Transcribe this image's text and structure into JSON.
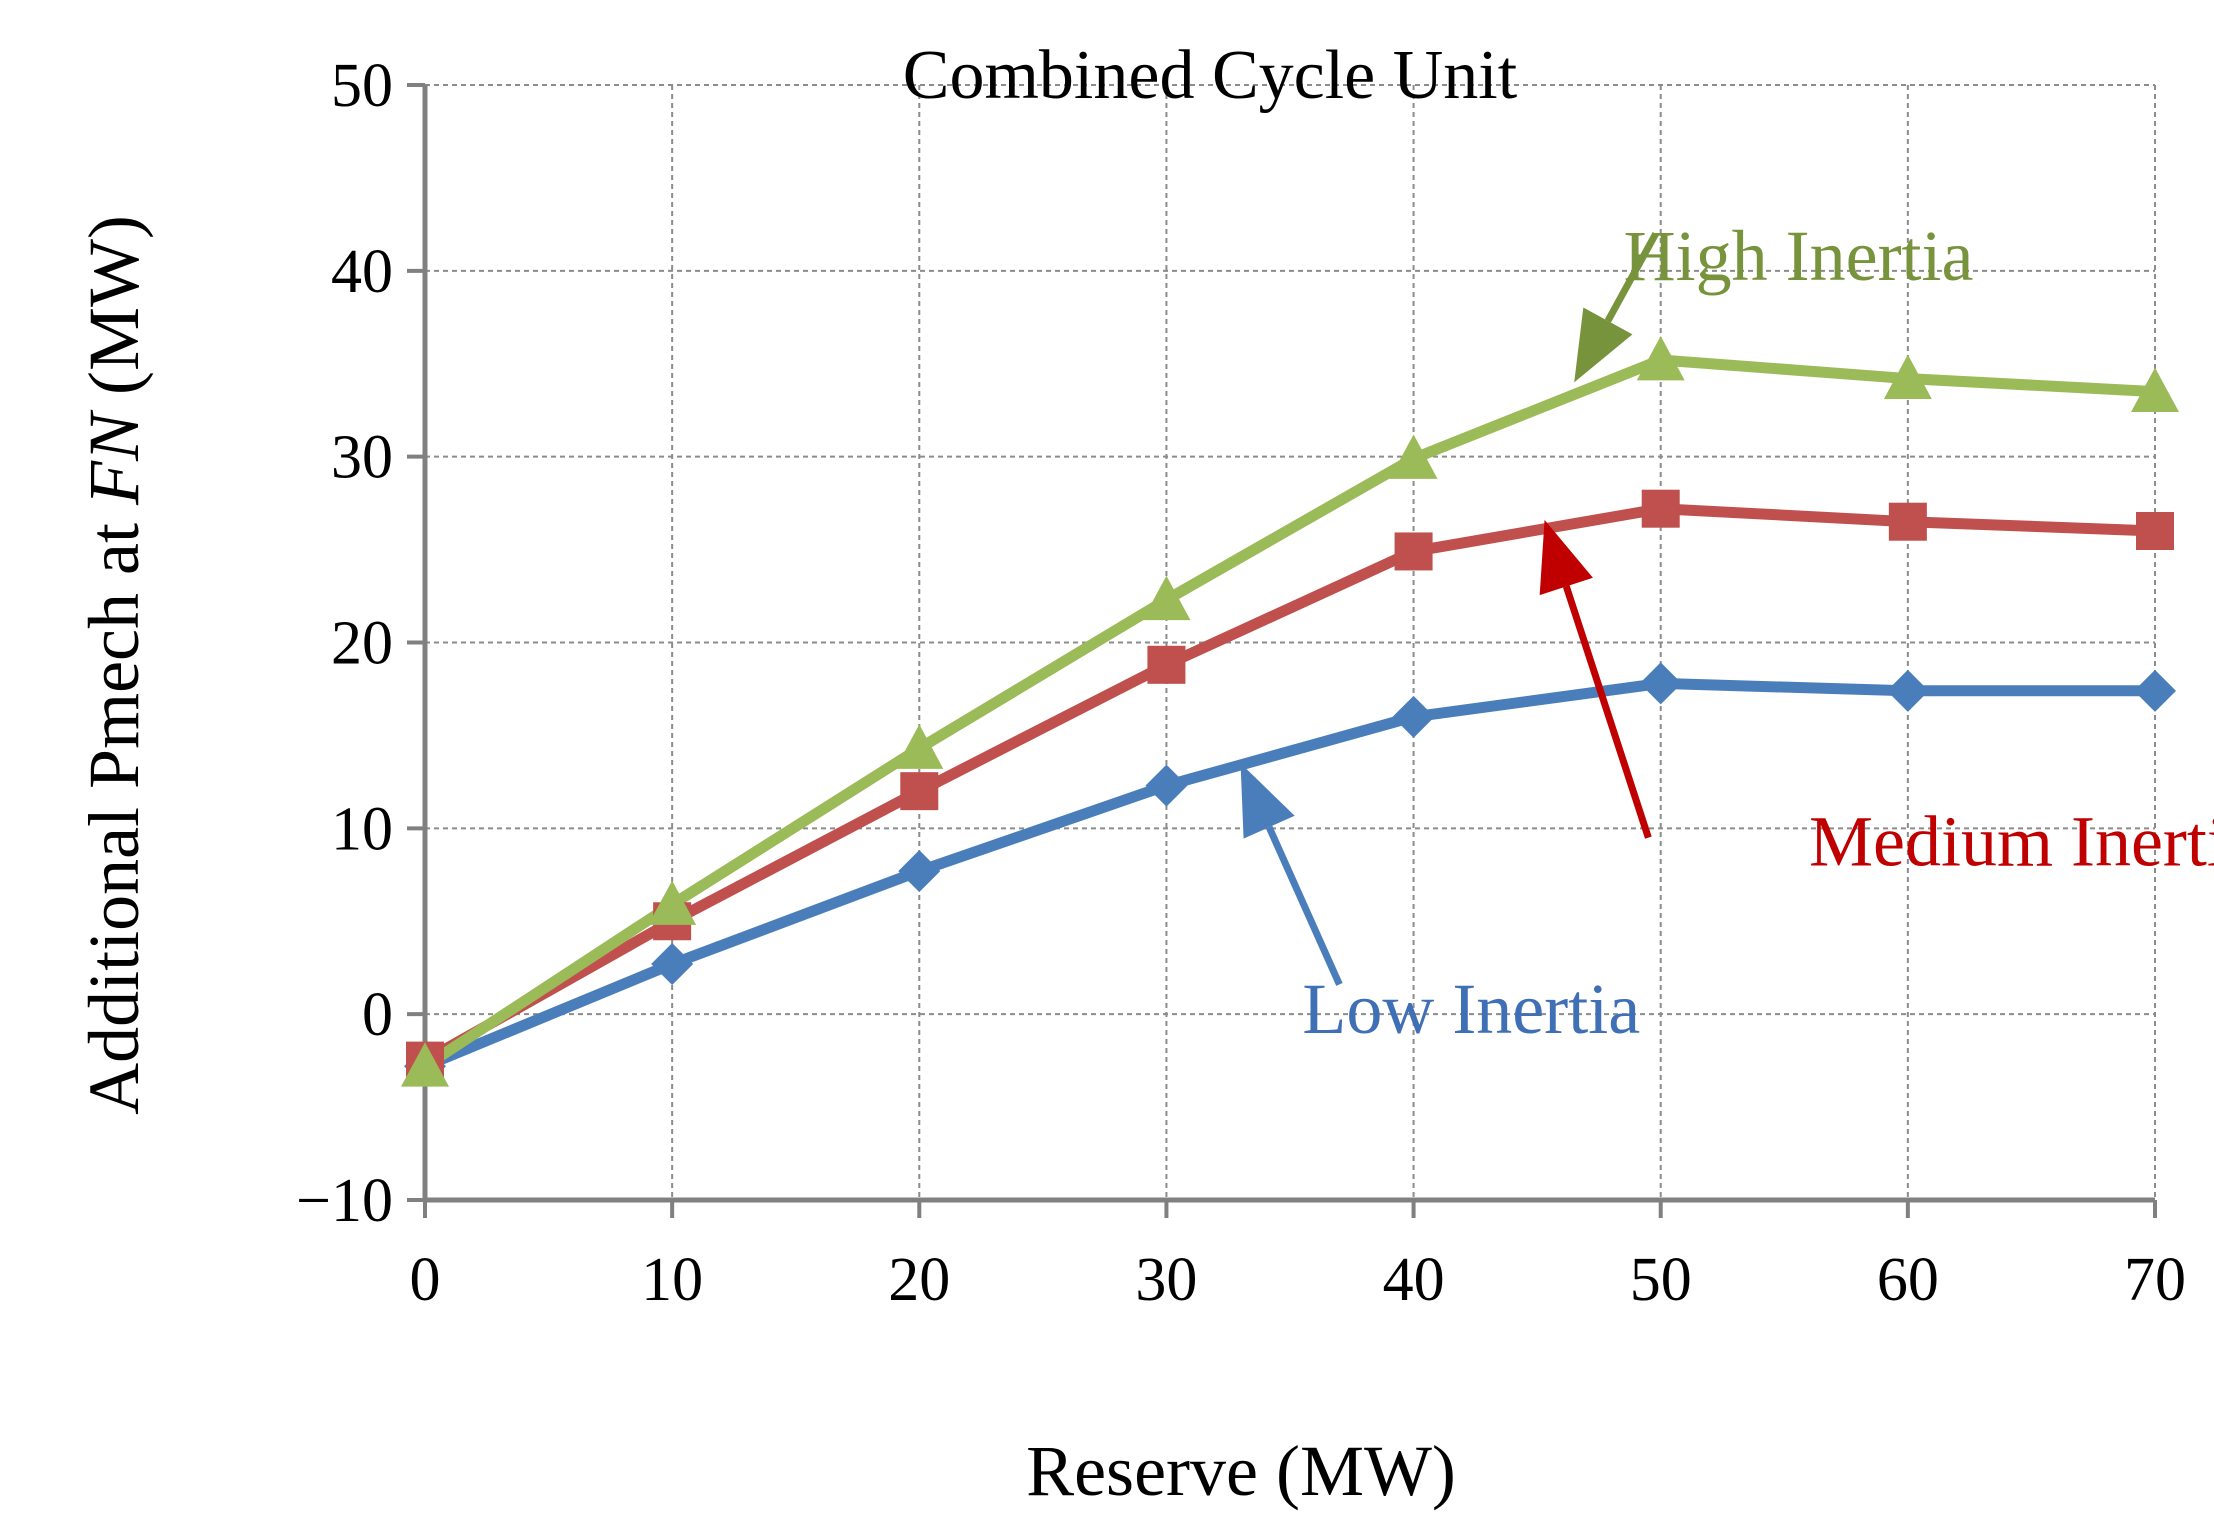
{
  "chart_data": {
    "type": "line",
    "title": "Combined Cycle Unit",
    "xlabel": "Reserve (MW)",
    "ylabel_prefix": "Additional Pmech at ",
    "ylabel_italic": "FN",
    "ylabel_suffix": "  (MW)",
    "x": [
      0,
      10,
      20,
      30,
      40,
      50,
      60,
      70
    ],
    "xlim": [
      0,
      70
    ],
    "ylim": [
      -10,
      50
    ],
    "x_ticks": [
      0,
      10,
      20,
      30,
      40,
      50,
      60,
      70
    ],
    "y_ticks": [
      -10,
      0,
      10,
      20,
      30,
      40,
      50
    ],
    "y_tick_labels": [
      "−10",
      "0",
      "10",
      "20",
      "30",
      "40",
      "50"
    ],
    "grid": true,
    "legend": "none (inline annotations with arrows)",
    "series": [
      {
        "name": "Low Inertia",
        "label": "Low Inertia",
        "marker": "diamond",
        "color": "#4a7ebb",
        "label_color": "#3f6fb5",
        "values": [
          -2.8,
          2.7,
          7.7,
          12.3,
          16.0,
          17.8,
          17.4,
          17.4
        ]
      },
      {
        "name": "Medium Inertia",
        "label": "Medium Inertia",
        "marker": "square",
        "color": "#c0504d",
        "label_color": "#c00000",
        "values": [
          -2.5,
          5.0,
          12.0,
          18.8,
          24.9,
          27.2,
          26.5,
          26.0
        ]
      },
      {
        "name": "High Inertia",
        "label": "High Inertia",
        "marker": "triangle",
        "color": "#9bbb59",
        "label_color": "#77933c",
        "values": [
          -2.8,
          5.9,
          14.3,
          22.3,
          29.9,
          35.2,
          34.2,
          33.5
        ]
      }
    ],
    "annotations": [
      {
        "series": "High Inertia",
        "text_anchor": [
          48.5,
          39.5
        ],
        "arrow_from": [
          49.8,
          42.0
        ],
        "arrow_to": [
          46.5,
          34.0
        ],
        "arrow_color": "#77933c"
      },
      {
        "series": "Medium Inertia",
        "text_anchor": [
          56.0,
          8.0
        ],
        "arrow_from": [
          49.5,
          9.5
        ],
        "arrow_to": [
          45.3,
          26.6
        ],
        "arrow_color": "#c00000"
      },
      {
        "series": "Low Inertia",
        "text_anchor": [
          35.5,
          -1.0
        ],
        "arrow_from": [
          37.0,
          1.6
        ],
        "arrow_to": [
          33.0,
          13.5
        ],
        "arrow_color": "#4a7ebb"
      }
    ]
  }
}
